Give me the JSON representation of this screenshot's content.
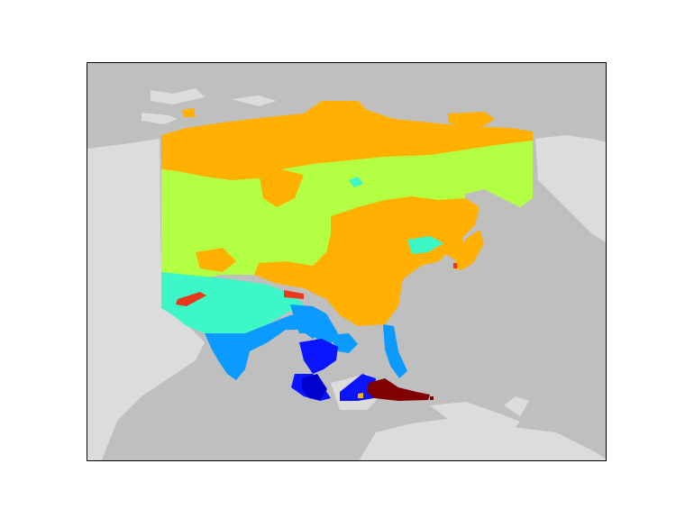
{
  "map": {
    "projection": "cylindrical",
    "colors": {
      "ocean": "#bfbfbf",
      "land": "#dcdcdc",
      "class_dark_blue": "#0000cd",
      "class_deep_blue": "#0a14ff",
      "class_sky_blue": "#0b9bff",
      "class_teal": "#3ef7c6",
      "class_lime": "#b3ff44",
      "class_orange": "#ffb000",
      "class_red": "#e8391d",
      "class_maroon": "#800000"
    },
    "legend_visible": false,
    "title": ""
  }
}
